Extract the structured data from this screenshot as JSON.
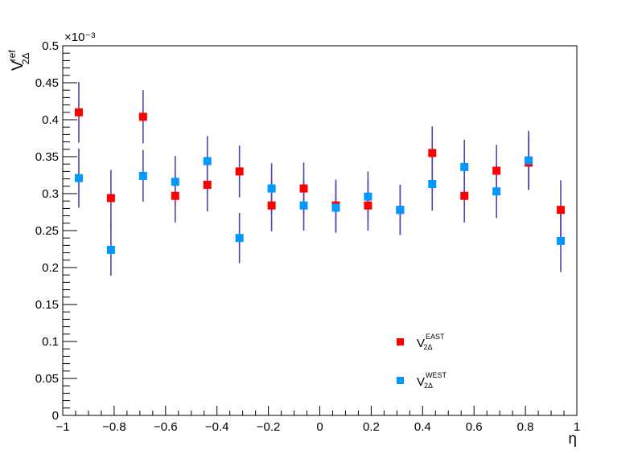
{
  "chart_data": {
    "type": "scatter",
    "xlabel": "η",
    "ylabel": {
      "base": "V",
      "sup": "ref",
      "sub": "2Δ"
    },
    "y_exponent_label": "×10⁻³",
    "xlim": [
      -1,
      1
    ],
    "ylim": [
      0,
      0.5
    ],
    "x_ticks": [
      -1,
      -0.8,
      -0.6,
      -0.4,
      -0.2,
      0,
      0.2,
      0.4,
      0.6,
      0.8,
      1
    ],
    "x_tick_labels": [
      "−1",
      "−0.8",
      "−0.6",
      "−0.4",
      "−0.2",
      "0",
      "0.2",
      "0.4",
      "0.6",
      "0.8",
      "1"
    ],
    "y_ticks": [
      0,
      0.05,
      0.1,
      0.15,
      0.2,
      0.25,
      0.3,
      0.35,
      0.4,
      0.45,
      0.5
    ],
    "y_tick_labels": [
      "0",
      "0.05",
      "0.1",
      "0.15",
      "0.2",
      "0.25",
      "0.3",
      "0.35",
      "0.4",
      "0.45",
      "0.5"
    ],
    "grid": false,
    "legend_position": "bottom-center",
    "series": [
      {
        "name": "V_{2Δ}^{EAST}",
        "legend_base": "V",
        "legend_sup": "EAST",
        "legend_sub": "2Δ",
        "color": "#ff0000",
        "x": [
          -0.9375,
          -0.8125,
          -0.6875,
          -0.5625,
          -0.4375,
          -0.3125,
          -0.1875,
          -0.0625,
          0.0625,
          0.1875,
          0.3125,
          0.4375,
          0.5625,
          0.6875,
          0.8125,
          0.9375
        ],
        "y": [
          0.41,
          0.294,
          0.404,
          0.297,
          0.312,
          0.33,
          0.284,
          0.307,
          0.284,
          0.284,
          0.278,
          0.355,
          0.297,
          0.331,
          0.342,
          0.278
        ],
        "err": [
          0.041,
          0.038,
          0.036,
          0.036,
          0.036,
          0.035,
          0.035,
          0.035,
          0.035,
          0.034,
          0.034,
          0.036,
          0.036,
          0.035,
          0.036,
          0.04
        ]
      },
      {
        "name": "V_{2Δ}^{WEST}",
        "legend_base": "V",
        "legend_sup": "WEST",
        "legend_sub": "2Δ",
        "color": "#0099ff",
        "x": [
          -0.9375,
          -0.8125,
          -0.6875,
          -0.5625,
          -0.4375,
          -0.3125,
          -0.1875,
          -0.0625,
          0.0625,
          0.1875,
          0.3125,
          0.4375,
          0.5625,
          0.6875,
          0.8125,
          0.9375
        ],
        "y": [
          0.321,
          0.224,
          0.324,
          0.316,
          0.344,
          0.24,
          0.307,
          0.284,
          0.281,
          0.296,
          0.278,
          0.313,
          0.336,
          0.303,
          0.345,
          0.236
        ],
        "err": [
          0.04,
          0.035,
          0.035,
          0.035,
          0.034,
          0.034,
          0.034,
          0.034,
          0.034,
          0.034,
          0.034,
          0.036,
          0.037,
          0.036,
          0.04,
          0.042
        ]
      }
    ]
  }
}
